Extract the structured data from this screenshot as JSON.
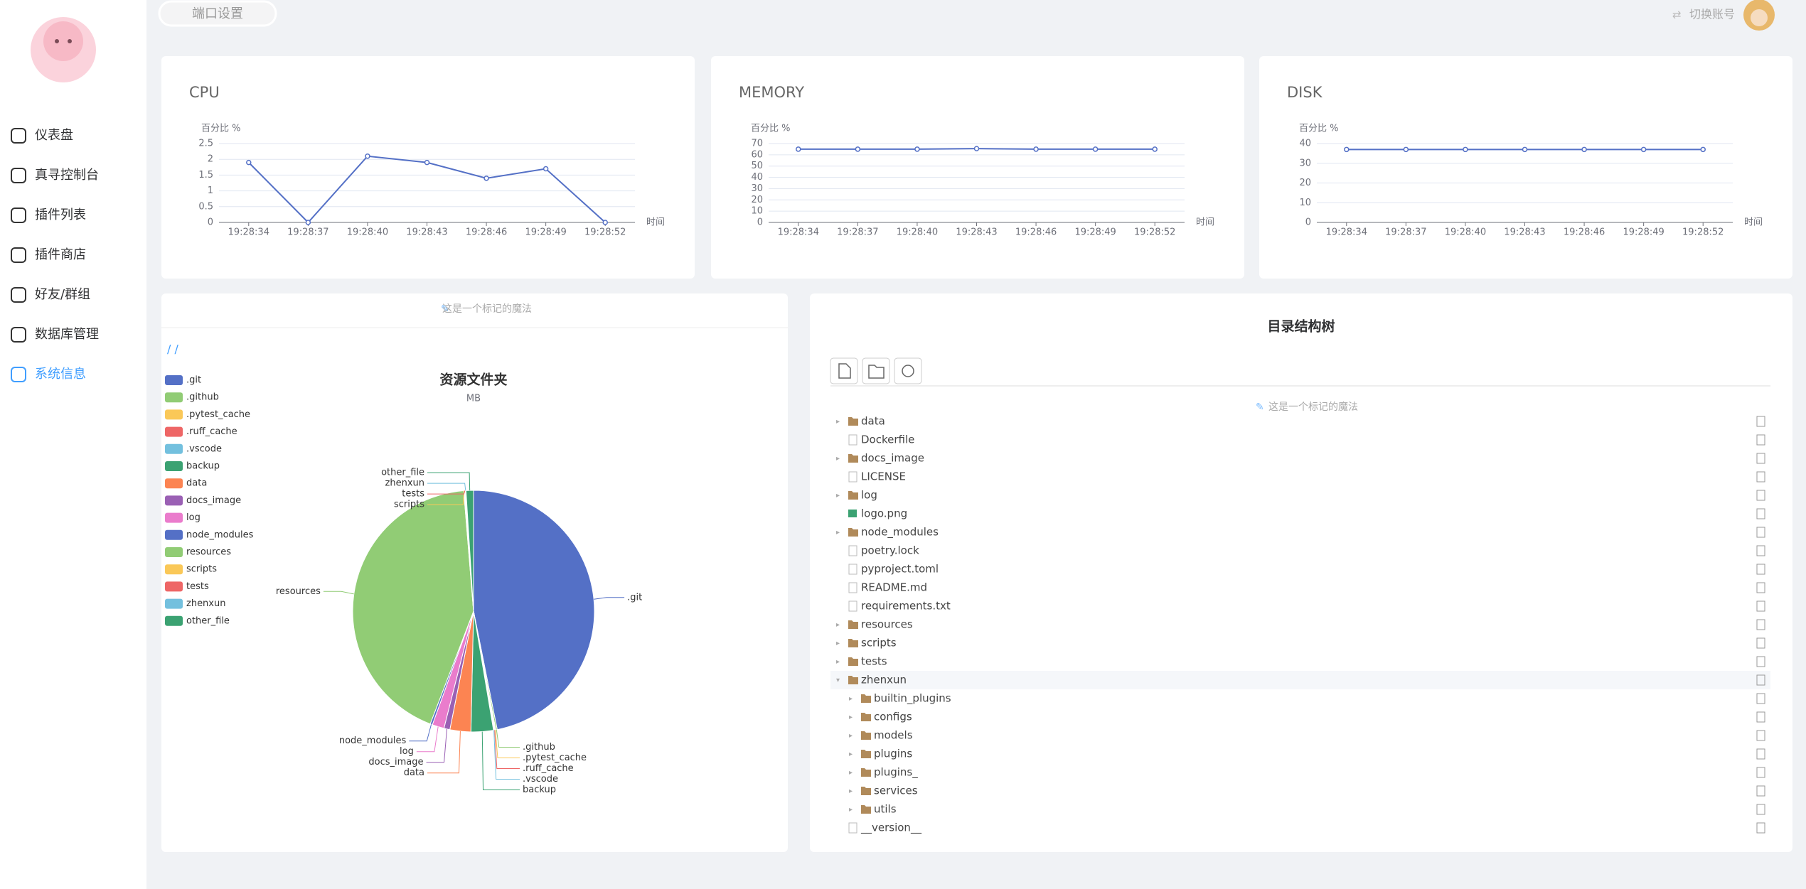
{
  "header": {
    "port_button": "端口设置",
    "switch_account": "切换账号"
  },
  "sidebar": {
    "menu": [
      "仪表盘",
      "真寻控制台",
      "插件列表",
      "插件商店",
      "好友/群组",
      "数据库管理",
      "系统信息"
    ],
    "active": 6
  },
  "chart_data": [
    {
      "type": "line",
      "title": "CPU",
      "y_axis_name": "百分比 %",
      "x_axis_name": "时间",
      "categories": [
        "19:28:34",
        "19:28:37",
        "19:28:40",
        "19:28:43",
        "19:28:46",
        "19:28:49",
        "19:28:52"
      ],
      "series": [
        {
          "color": "#5470c6",
          "values": [
            1.9,
            0,
            2.1,
            1.9,
            1.4,
            1.7,
            0
          ]
        }
      ],
      "ylim": [
        0,
        2.5
      ],
      "yticks": [
        0,
        0.5,
        1,
        1.5,
        2,
        2.5
      ],
      "grid": true
    },
    {
      "type": "line",
      "title": "MEMORY",
      "y_axis_name": "百分比 %",
      "x_axis_name": "时间",
      "categories": [
        "19:28:34",
        "19:28:37",
        "19:28:40",
        "19:28:43",
        "19:28:46",
        "19:28:49",
        "19:28:52"
      ],
      "series": [
        {
          "color": "#5470c6",
          "values": [
            65,
            65,
            65,
            65.5,
            65,
            65,
            65
          ]
        }
      ],
      "ylim": [
        0,
        70
      ],
      "yticks": [
        0,
        10,
        20,
        30,
        40,
        50,
        60,
        70
      ],
      "grid": true
    },
    {
      "type": "line",
      "title": "DISK",
      "y_axis_name": "百分比 %",
      "x_axis_name": "时间",
      "categories": [
        "19:28:34",
        "19:28:37",
        "19:28:40",
        "19:28:43",
        "19:28:46",
        "19:28:49",
        "19:28:52"
      ],
      "series": [
        {
          "color": "#5470c6",
          "values": [
            37,
            37,
            37,
            37,
            37,
            37,
            37
          ]
        }
      ],
      "ylim": [
        0,
        40
      ],
      "yticks": [
        0,
        10,
        20,
        30,
        40
      ],
      "grid": true
    },
    {
      "type": "pie",
      "title": "资源文件夹",
      "subtitle": "MB",
      "legend": "left",
      "categories": [
        ".git",
        ".github",
        ".pytest_cache",
        ".ruff_cache",
        ".vscode",
        "backup",
        "data",
        "docs_image",
        "log",
        "node_modules",
        "resources",
        "scripts",
        "tests",
        "zhenxun",
        "other_file"
      ],
      "values": [
        47,
        0.2,
        0.1,
        0.1,
        0.1,
        3,
        2.8,
        0.8,
        1.6,
        0.3,
        43,
        0.1,
        0.1,
        0.1,
        1
      ],
      "colors": [
        "#5470c6",
        "#91cc75",
        "#fac858",
        "#ee6666",
        "#73c0de",
        "#3ba272",
        "#fc8452",
        "#9a60b4",
        "#ea7ccc",
        "#5470c6",
        "#91cc75",
        "#fac858",
        "#ee6666",
        "#73c0de",
        "#3ba272"
      ]
    }
  ],
  "pie_panel": {
    "hint": "这是一个标记的魔法",
    "breadcrumb": "/ /"
  },
  "tree_panel": {
    "title": "目录结构树",
    "hint": "这是一个标记的魔法",
    "items": [
      {
        "name": "data",
        "kind": "folder",
        "depth": 0
      },
      {
        "name": "Dockerfile",
        "kind": "file",
        "depth": 0
      },
      {
        "name": "docs_image",
        "kind": "folder",
        "depth": 0
      },
      {
        "name": "LICENSE",
        "kind": "file",
        "depth": 0
      },
      {
        "name": "log",
        "kind": "folder",
        "depth": 0
      },
      {
        "name": "logo.png",
        "kind": "image",
        "depth": 0
      },
      {
        "name": "node_modules",
        "kind": "folder",
        "depth": 0
      },
      {
        "name": "poetry.lock",
        "kind": "file",
        "depth": 0
      },
      {
        "name": "pyproject.toml",
        "kind": "file",
        "depth": 0
      },
      {
        "name": "README.md",
        "kind": "file",
        "depth": 0
      },
      {
        "name": "requirements.txt",
        "kind": "file",
        "depth": 0
      },
      {
        "name": "resources",
        "kind": "folder",
        "depth": 0
      },
      {
        "name": "scripts",
        "kind": "folder",
        "depth": 0
      },
      {
        "name": "tests",
        "kind": "folder",
        "depth": 0
      },
      {
        "name": "zhenxun",
        "kind": "folder",
        "depth": 0,
        "expanded": true
      },
      {
        "name": "builtin_plugins",
        "kind": "folder",
        "depth": 1
      },
      {
        "name": "configs",
        "kind": "folder",
        "depth": 1
      },
      {
        "name": "models",
        "kind": "folder",
        "depth": 1
      },
      {
        "name": "plugins",
        "kind": "folder",
        "depth": 1
      },
      {
        "name": "plugins_",
        "kind": "folder",
        "depth": 1
      },
      {
        "name": "services",
        "kind": "folder",
        "depth": 1
      },
      {
        "name": "utils",
        "kind": "folder",
        "depth": 1
      },
      {
        "name": "__version__",
        "kind": "file",
        "depth": 0
      }
    ]
  }
}
